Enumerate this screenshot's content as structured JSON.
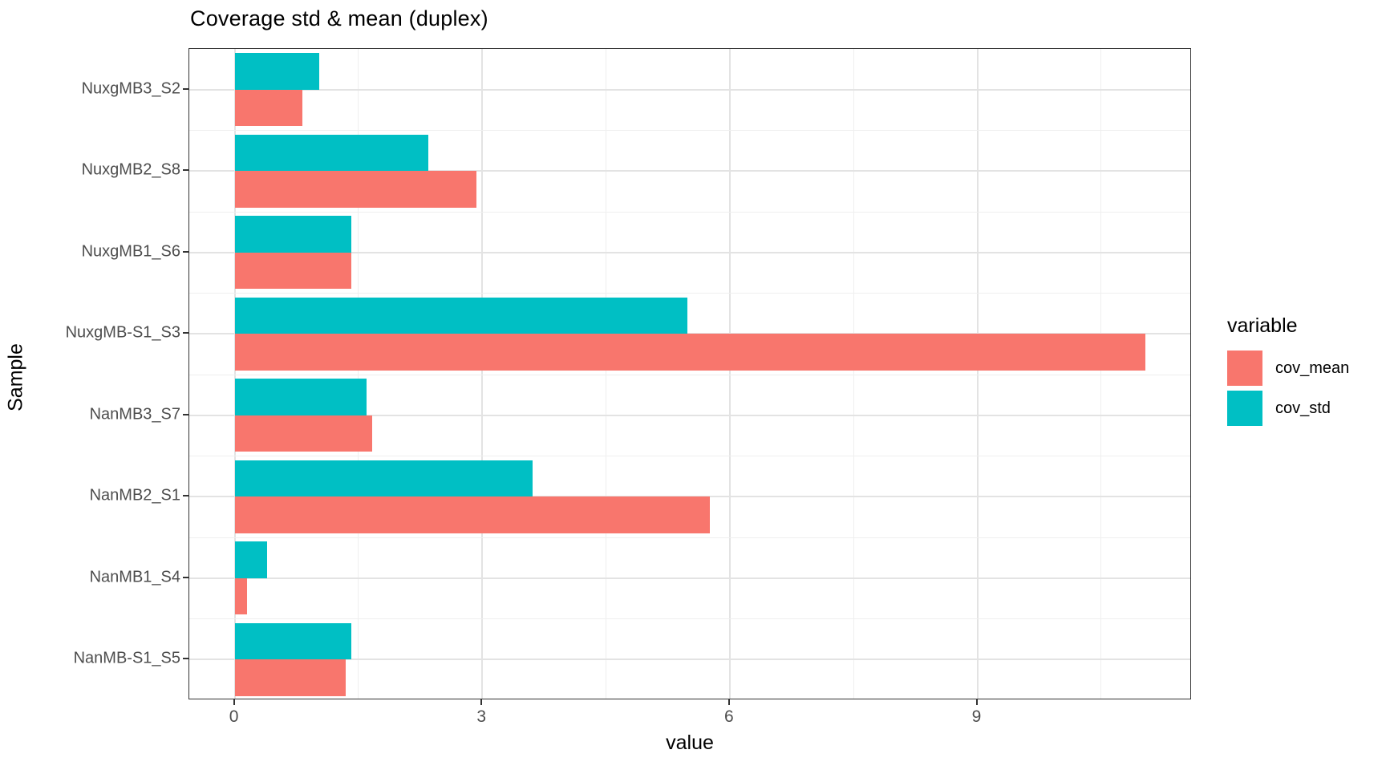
{
  "page_background": "#ffffff",
  "chart_data": {
    "type": "bar",
    "orientation": "horizontal",
    "title": "Coverage std & mean (duplex)",
    "xlabel": "value",
    "ylabel": "Sample",
    "legend_title": "variable",
    "legend_position": "right",
    "grid": true,
    "categories_top_to_bottom": [
      "NuxgMB3_S2",
      "NuxgMB2_S8",
      "NuxgMB1_S6",
      "NuxgMB-S1_S3",
      "NanMB3_S7",
      "NanMB2_S1",
      "NanMB1_S4",
      "NanMB-S1_S5"
    ],
    "series": [
      {
        "name": "cov_mean",
        "color": "#F8766D",
        "values": [
          0.82,
          2.93,
          1.41,
          11.04,
          1.67,
          5.76,
          0.15,
          1.35
        ]
      },
      {
        "name": "cov_std",
        "color": "#00BFC4",
        "values": [
          1.02,
          2.35,
          1.41,
          5.49,
          1.6,
          3.61,
          0.39,
          1.41
        ]
      }
    ],
    "group_order_top_to_bottom": [
      "cov_std",
      "cov_mean"
    ],
    "x_ticks": [
      0,
      3,
      6,
      9
    ],
    "x_minor_ticks": [
      1.5,
      4.5,
      7.5,
      10.5
    ],
    "xlim": [
      -0.55,
      11.6
    ],
    "colors": {
      "cov_mean": "#F8766D",
      "cov_std": "#00BFC4",
      "grid_major": "#e3e3e3",
      "grid_minor": "#efefef",
      "panel_border": "#333333",
      "tick_text": "#4d4d4d"
    }
  }
}
